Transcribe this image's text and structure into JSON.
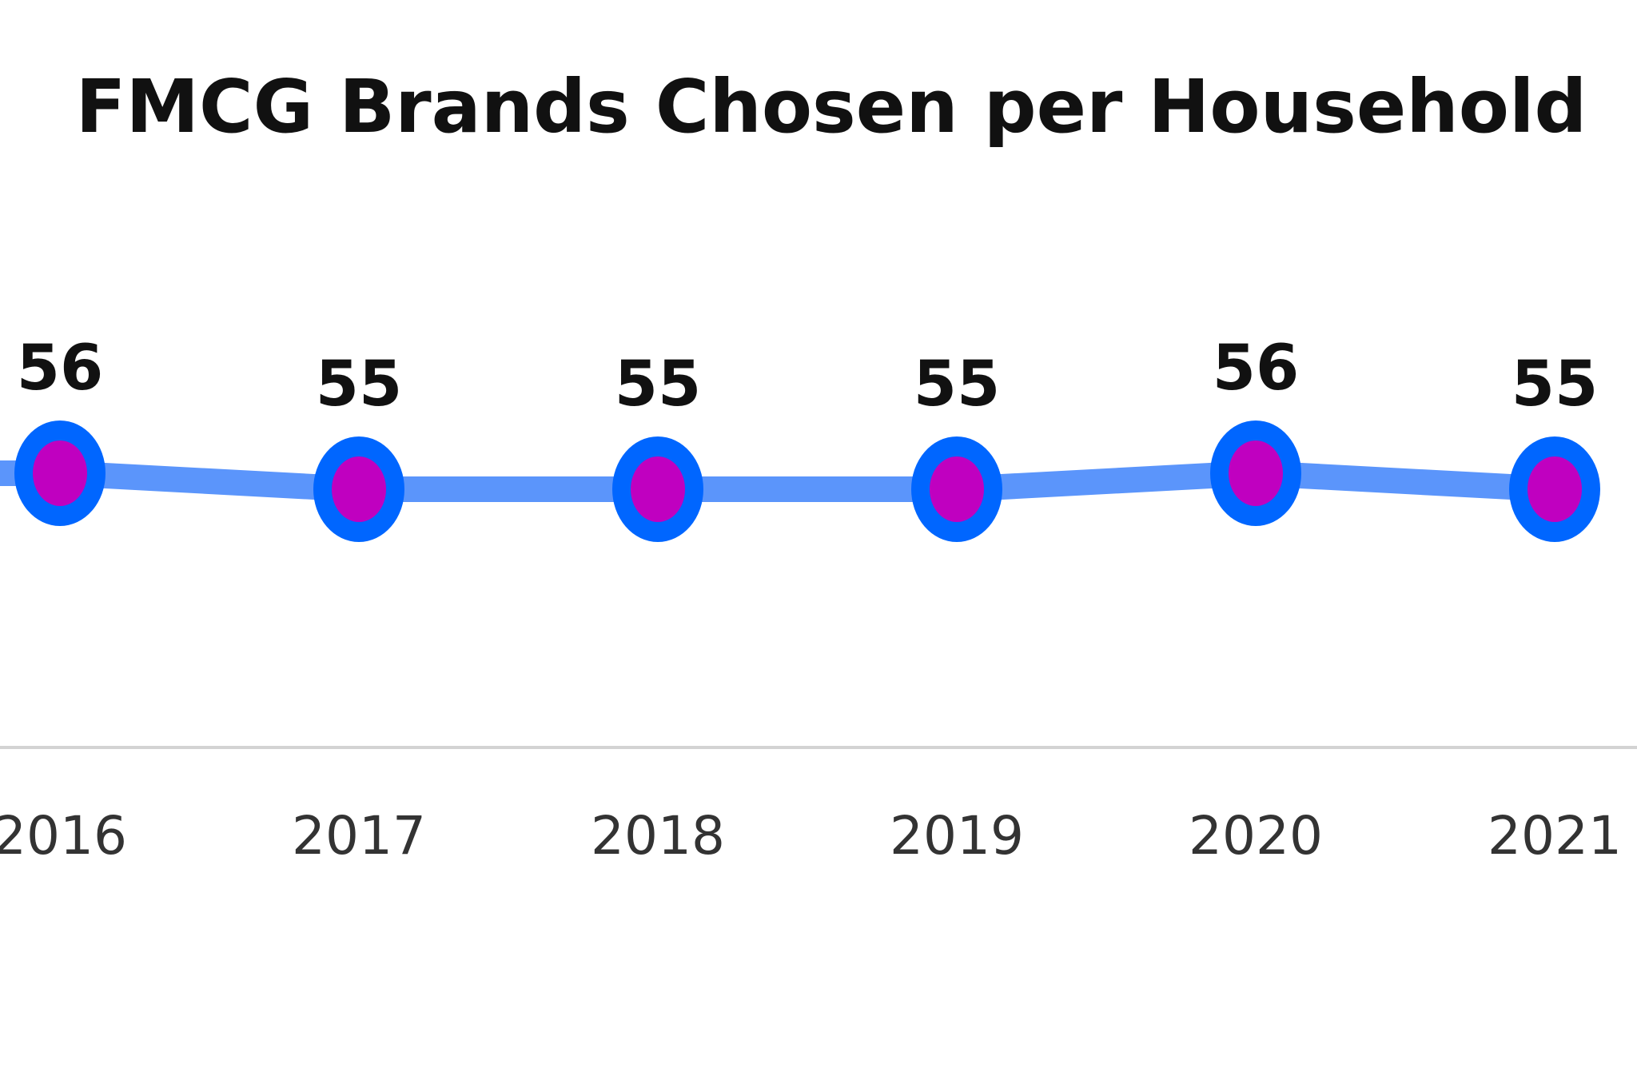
{
  "chart_data": {
    "type": "line",
    "title": "FMCG Brands Chosen per Household",
    "xlabel": "",
    "ylabel": "",
    "categories": [
      "2016",
      "2017",
      "2018",
      "2019",
      "2020",
      "2021"
    ],
    "series": [
      {
        "values": [
          56,
          55,
          55,
          55,
          56,
          55
        ]
      }
    ],
    "data_labels": [
      "56",
      "55",
      "55",
      "55",
      "56",
      "55"
    ],
    "grid": false,
    "legend": "none",
    "colors": {
      "line": "#5b95fb",
      "marker_outer": "#0066ff",
      "marker_inner": "#c000c0",
      "baseline": "#d3d3d3",
      "text": "#111111",
      "tick_text": "#333333"
    }
  }
}
